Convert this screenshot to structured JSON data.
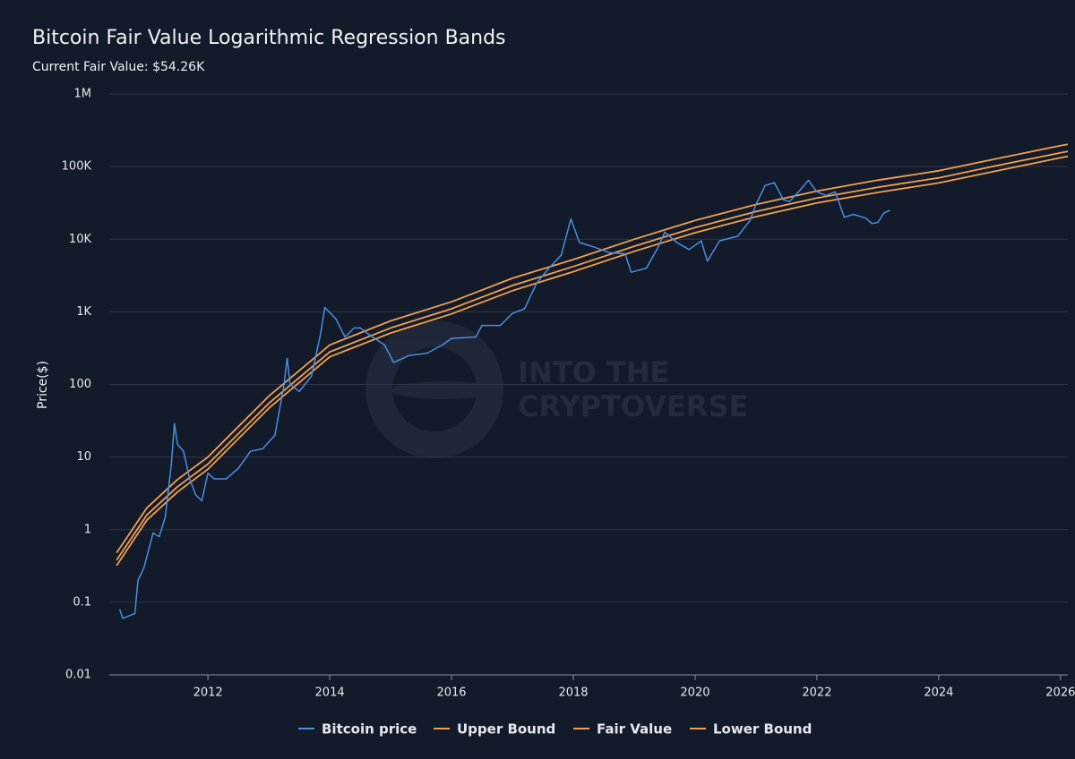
{
  "chart_data": {
    "type": "line",
    "title": "Bitcoin Fair Value Logarithmic Regression Bands",
    "subtitle": "Current Fair Value: $54.26K",
    "y_label": "Price($)",
    "watermark": [
      "INTO THE",
      "CRYPTOVERSE"
    ],
    "log_scale": true,
    "grid": true,
    "legend_position": "bottom",
    "xlim": [
      2010.38,
      2026.12
    ],
    "xticks": [
      2012,
      2014,
      2016,
      2018,
      2020,
      2022,
      2024,
      2026
    ],
    "ylim": [
      0.01,
      1000000
    ],
    "yticks": [
      0.01,
      0.1,
      1,
      10,
      100,
      {
        "value": 1000,
        "label": "1K"
      },
      {
        "value": 10000,
        "label": "10K"
      },
      {
        "value": 100000,
        "label": "100K"
      },
      {
        "value": 1000000,
        "label": "1M"
      }
    ],
    "series": [
      {
        "name": "Bitcoin price",
        "color": "#4a8fe0",
        "x": [
          2010.55,
          2010.6,
          2010.8,
          2010.85,
          2010.95,
          2011.1,
          2011.2,
          2011.3,
          2011.4,
          2011.45,
          2011.5,
          2011.6,
          2011.7,
          2011.8,
          2011.9,
          2012.0,
          2012.1,
          2012.3,
          2012.5,
          2012.7,
          2012.9,
          2013.1,
          2013.25,
          2013.3,
          2013.35,
          2013.5,
          2013.7,
          2013.85,
          2013.92,
          2014.1,
          2014.25,
          2014.4,
          2014.5,
          2014.7,
          2014.9,
          2015.05,
          2015.3,
          2015.6,
          2015.85,
          2016.0,
          2016.4,
          2016.5,
          2016.8,
          2017.0,
          2017.2,
          2017.4,
          2017.6,
          2017.8,
          2017.96,
          2018.1,
          2018.3,
          2018.6,
          2018.85,
          2018.95,
          2019.2,
          2019.4,
          2019.5,
          2019.7,
          2019.9,
          2020.1,
          2020.2,
          2020.4,
          2020.7,
          2020.9,
          2021.0,
          2021.15,
          2021.3,
          2021.45,
          2021.55,
          2021.7,
          2021.86,
          2022.0,
          2022.15,
          2022.3,
          2022.45,
          2022.6,
          2022.8,
          2022.9,
          2023.0,
          2023.1,
          2023.2
        ],
        "values": [
          0.08,
          0.06,
          0.07,
          0.2,
          0.3,
          0.9,
          0.8,
          1.5,
          8,
          29,
          15,
          12,
          5,
          3,
          2.5,
          6,
          5,
          5,
          7,
          12,
          13,
          20,
          100,
          230,
          100,
          80,
          130,
          500,
          1150,
          800,
          450,
          600,
          600,
          450,
          350,
          200,
          250,
          270,
          350,
          430,
          450,
          650,
          650,
          950,
          1100,
          2500,
          4000,
          6000,
          19000,
          9000,
          8000,
          6500,
          6300,
          3500,
          4000,
          8000,
          12500,
          9000,
          7200,
          9500,
          5000,
          9500,
          11000,
          18000,
          30000,
          55000,
          60000,
          35000,
          33000,
          45000,
          65000,
          45000,
          40000,
          45000,
          20000,
          22000,
          19500,
          16500,
          17000,
          23000,
          25000
        ]
      },
      {
        "name": "Upper Bound",
        "color": "#f0a050",
        "x": [
          2010.5,
          2011,
          2011.5,
          2012,
          2013,
          2014,
          2015,
          2016,
          2017,
          2018,
          2019,
          2020,
          2021,
          2022,
          2023,
          2024,
          2025,
          2026,
          2026.12
        ],
        "values": [
          0.48,
          2,
          4.9,
          10,
          69,
          350,
          750,
          1375,
          2900,
          5250,
          10000,
          18100,
          30000,
          46000,
          65000,
          87500,
          131000,
          194000,
          203000
        ]
      },
      {
        "name": "Fair Value",
        "color": "#f0a050",
        "x": [
          2010.5,
          2011,
          2011.5,
          2012,
          2013,
          2014,
          2015,
          2016,
          2017,
          2018,
          2019,
          2020,
          2021,
          2022,
          2023,
          2024,
          2025,
          2026,
          2026.12
        ],
        "values": [
          0.38,
          1.6,
          3.9,
          8,
          55,
          280,
          600,
          1100,
          2300,
          4200,
          8000,
          14500,
          24000,
          37000,
          52000,
          70000,
          105000,
          155000,
          162000
        ]
      },
      {
        "name": "Lower Bound",
        "color": "#f0a050",
        "x": [
          2010.5,
          2011,
          2011.5,
          2012,
          2013,
          2014,
          2015,
          2016,
          2017,
          2018,
          2019,
          2020,
          2021,
          2022,
          2023,
          2024,
          2025,
          2026,
          2026.12
        ],
        "values": [
          0.32,
          1.36,
          3.3,
          6.8,
          47,
          240,
          510,
          935,
          1950,
          3570,
          6800,
          12300,
          20400,
          31500,
          44000,
          59500,
          89000,
          132000,
          138000
        ]
      }
    ]
  }
}
